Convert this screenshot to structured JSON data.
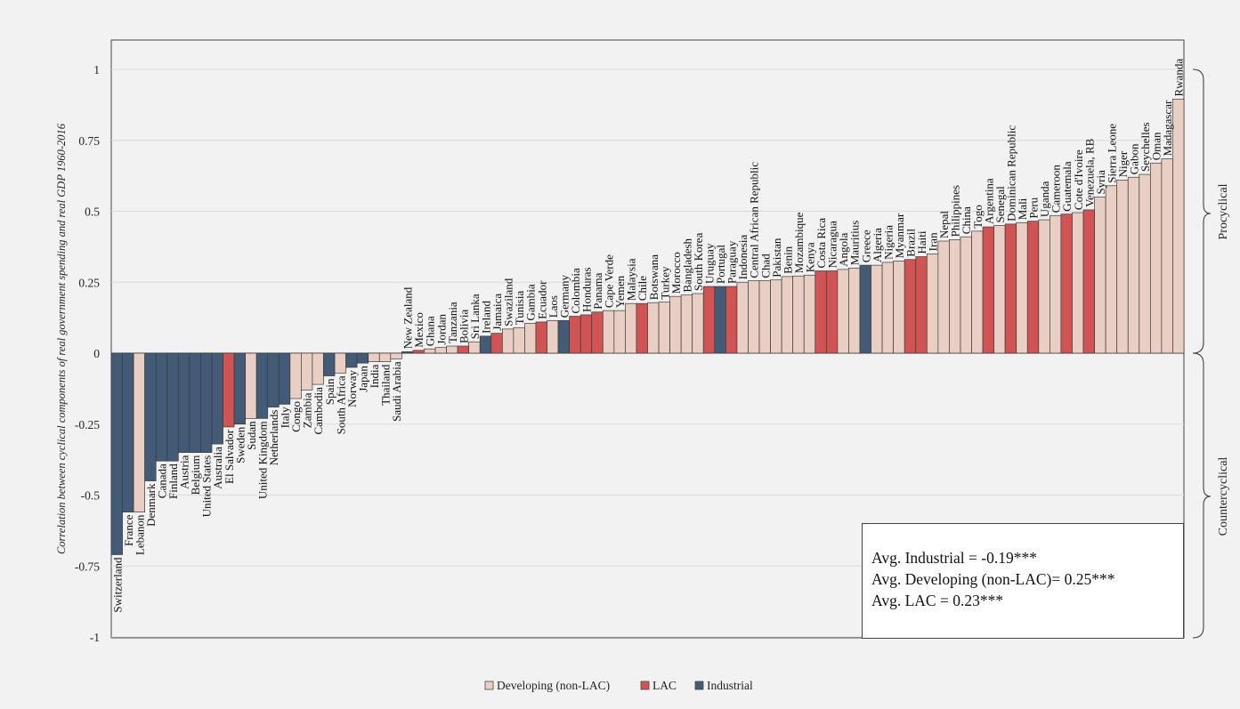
{
  "chart_data": {
    "type": "bar",
    "ylabel": "Correlation between cyclical components of real government spending and real GDP 1960-2016",
    "ylim": [
      -1,
      1.1
    ],
    "yticks": [
      1,
      0.75,
      0.5,
      0.25,
      0,
      -0.25,
      -0.5,
      -0.75,
      -1
    ],
    "ytick_labels": [
      "1",
      "0.75",
      "0.5",
      "0.25",
      "0",
      "-0.25",
      "-0.5",
      "-0.75",
      "-1"
    ],
    "legend": [
      {
        "key": "D",
        "label": "Developing (non-LAC)",
        "color": "#e9cfc3"
      },
      {
        "key": "L",
        "label": "LAC",
        "color": "#d05454"
      },
      {
        "key": "I",
        "label": "Industrial",
        "color": "#445b78"
      }
    ],
    "side_labels": {
      "procyclical": "Procyclical",
      "countercyclical": "Countercyclical"
    },
    "averages": [
      "Avg. Industrial = -0.19***",
      "Avg. Developing (non-LAC)= 0.25***",
      "Avg. LAC = 0.23***"
    ],
    "categories": [
      "Switzerland",
      "France",
      "Lebanon",
      "Denmark",
      "Canada",
      "Finland",
      "Austria",
      "Belgium",
      "United States",
      "Australia",
      "El Salvador",
      "Sweden",
      "Sudan",
      "United Kingdom",
      "Netherlands",
      "Italy",
      "Congo",
      "Zambia",
      "Cambodia",
      "Spain",
      "South Africa",
      "Norway",
      "Japan",
      "India",
      "Thailand",
      "Saudi Arabia",
      "New Zealand",
      "Mexico",
      "Ghana",
      "Jordan",
      "Tanzania",
      "Bolivia",
      "Sri Lanka",
      "Ireland",
      "Jamaica",
      "Swaziland",
      "Tunisia",
      "Gambia",
      "Ecuador",
      "Laos",
      "Germany",
      "Colombia",
      "Honduras",
      "Panama",
      "Cape Verde",
      "Yemen",
      "Malaysia",
      "Chile",
      "Botswana",
      "Turkey",
      "Morocco",
      "Bangladesh",
      "South Korea",
      "Uruguay",
      "Portugal",
      "Paraguay",
      "Indonesia",
      "Central African Republic",
      "Chad",
      "Pakistan",
      "Benin",
      "Mozambique",
      "Kenya",
      "Costa Rica",
      "Nicaragua",
      "Angola",
      "Mauritius",
      "Greece",
      "Algeria",
      "Nigeria",
      "Myanmar",
      "Brazil",
      "Haiti",
      "Iran",
      "Nepal",
      "Philippines",
      "China",
      "Togo",
      "Argentina",
      "Senegal",
      "Dominican Republic",
      "Mali",
      "Peru",
      "Uganda",
      "Cameroon",
      "Guatemala",
      "Cote d'Ivoire",
      "Venezuela, RB",
      "Syria",
      "Sierra Leone",
      "Niger",
      "Gabon",
      "Seychelles",
      "Oman",
      "Madagascar",
      "Rwanda"
    ],
    "groups": [
      "I",
      "I",
      "D",
      "I",
      "I",
      "I",
      "I",
      "I",
      "I",
      "I",
      "L",
      "I",
      "D",
      "I",
      "I",
      "I",
      "D",
      "D",
      "D",
      "I",
      "D",
      "I",
      "I",
      "D",
      "D",
      "D",
      "I",
      "L",
      "D",
      "D",
      "D",
      "L",
      "D",
      "I",
      "L",
      "D",
      "D",
      "D",
      "L",
      "D",
      "I",
      "L",
      "L",
      "L",
      "D",
      "D",
      "D",
      "L",
      "D",
      "D",
      "D",
      "D",
      "D",
      "L",
      "I",
      "L",
      "D",
      "D",
      "D",
      "D",
      "D",
      "D",
      "D",
      "L",
      "L",
      "D",
      "D",
      "I",
      "D",
      "D",
      "D",
      "L",
      "L",
      "D",
      "D",
      "D",
      "D",
      "D",
      "L",
      "D",
      "L",
      "D",
      "L",
      "D",
      "D",
      "L",
      "D",
      "L",
      "D",
      "D",
      "D",
      "D",
      "D",
      "D",
      "D",
      "D"
    ],
    "values": [
      -0.71,
      -0.56,
      -0.56,
      -0.45,
      -0.38,
      -0.38,
      -0.35,
      -0.35,
      -0.35,
      -0.32,
      -0.26,
      -0.25,
      -0.23,
      -0.23,
      -0.19,
      -0.18,
      -0.16,
      -0.13,
      -0.11,
      -0.08,
      -0.07,
      -0.05,
      -0.035,
      -0.03,
      -0.03,
      -0.02,
      0.005,
      0.01,
      0.015,
      0.02,
      0.025,
      0.025,
      0.04,
      0.06,
      0.07,
      0.085,
      0.09,
      0.105,
      0.11,
      0.115,
      0.115,
      0.13,
      0.135,
      0.145,
      0.15,
      0.15,
      0.175,
      0.175,
      0.178,
      0.18,
      0.2,
      0.205,
      0.21,
      0.235,
      0.235,
      0.235,
      0.25,
      0.255,
      0.255,
      0.258,
      0.27,
      0.272,
      0.275,
      0.29,
      0.29,
      0.295,
      0.3,
      0.31,
      0.31,
      0.32,
      0.325,
      0.33,
      0.34,
      0.35,
      0.395,
      0.4,
      0.41,
      0.43,
      0.445,
      0.45,
      0.455,
      0.46,
      0.465,
      0.47,
      0.485,
      0.49,
      0.495,
      0.505,
      0.55,
      0.59,
      0.61,
      0.62,
      0.63,
      0.67,
      0.685,
      0.895
    ]
  }
}
